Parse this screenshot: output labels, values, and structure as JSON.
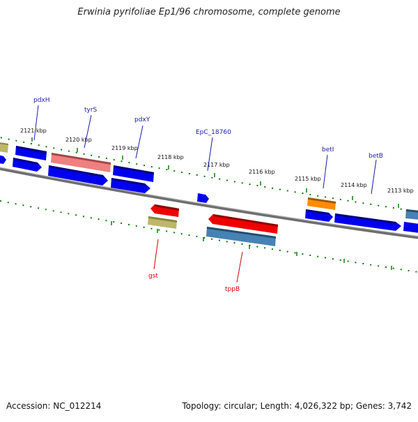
{
  "title": "Erwinia pyrifoliae Ep1/96 chromosome, complete genome",
  "footer": {
    "accession": "Accession: NC_012214",
    "summary": "Topology: circular; Length: 4,026,322 bp; Genes: 3,742"
  },
  "ticks": [
    "2121 kbp",
    "2120 kbp",
    "2119 kbp",
    "2118 kbp",
    "2117 kbp",
    "2116 kbp",
    "2115 kbp",
    "2114 kbp",
    "2113 kbp"
  ],
  "colors": {
    "cds": "#0000ee",
    "trna_light": "#f08080",
    "olive": "#bdb76b",
    "steel": "#4682b4",
    "red": "#ee0000",
    "orange": "#ff8c00",
    "label_upper": "#1a1aa8",
    "label_lower": "#cc0000",
    "tick_green": "#008000",
    "backbone": "#808080"
  },
  "gene_labels_top": [
    "pdxH",
    "tyrS",
    "pdxY",
    "EpC_18760",
    "betI",
    "betB"
  ],
  "gene_labels_bottom": [
    "gst",
    "tppB"
  ]
}
